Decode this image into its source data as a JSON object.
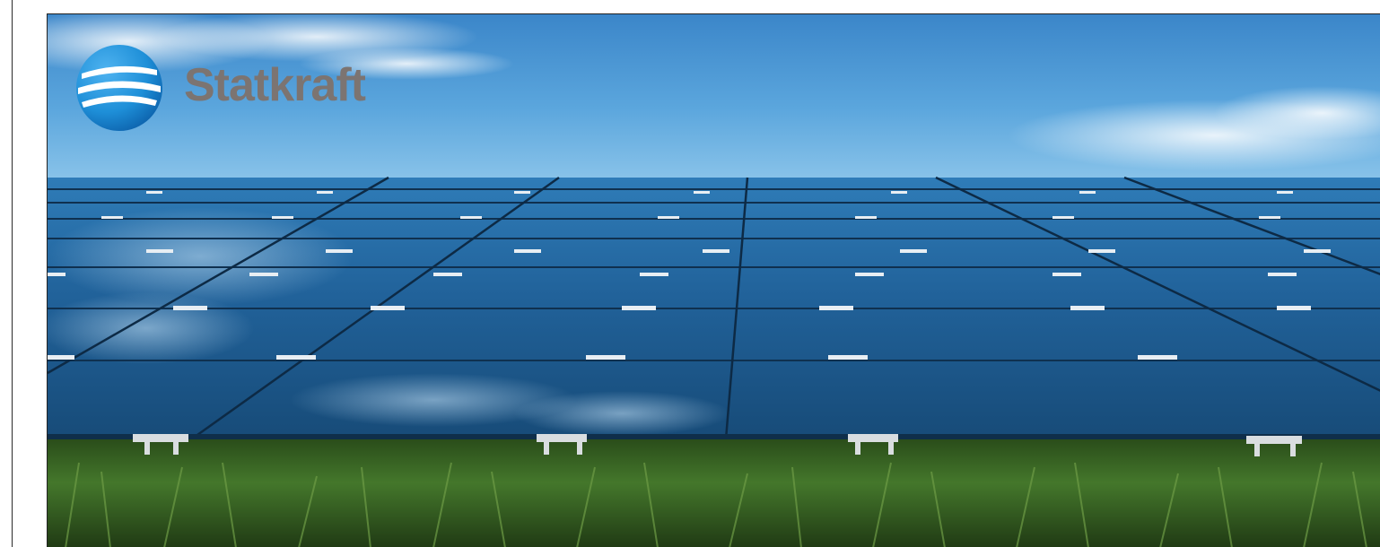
{
  "brand": {
    "name": "Statkraft",
    "logo_icon": "statkraft-globe-logo",
    "wordmark_color": "#7c7471",
    "globe_color": "#1e8fd8"
  },
  "hero": {
    "image_subject": "solar-panel-field-icon",
    "sky_top_color": "#3d8fd0",
    "panel_color": "#1d5a86",
    "grass_color": "#3b6a24"
  }
}
